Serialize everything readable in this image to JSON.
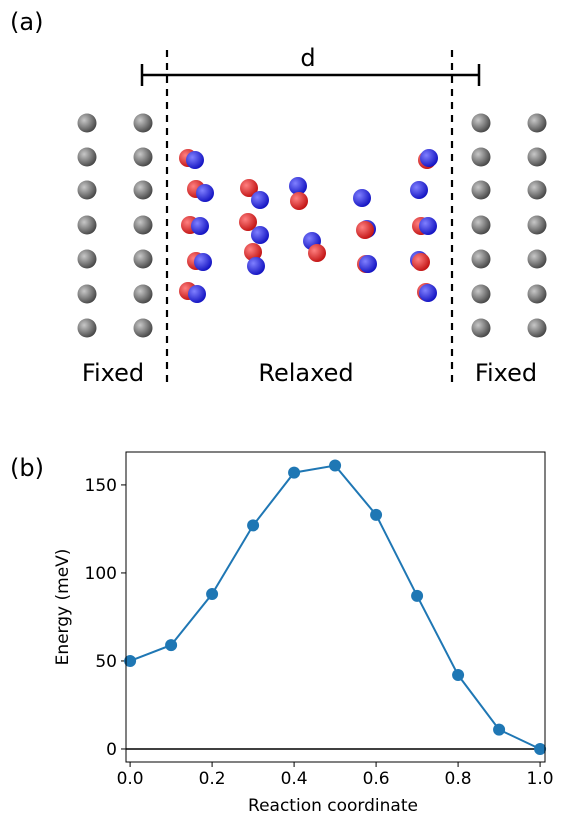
{
  "panel_a": {
    "label": "(a)",
    "distance_label": "d",
    "left_region": "Fixed",
    "middle_region": "Relaxed",
    "right_region": "Fixed"
  },
  "chart_data": {
    "type": "line",
    "panel_label": "(b)",
    "x_label": "Reaction coordinate",
    "y_label": "Energy (meV)",
    "x": [
      0,
      0.1,
      0.2,
      0.3,
      0.4,
      0.5,
      0.6,
      0.7,
      0.8,
      0.9,
      1.0
    ],
    "series": [
      {
        "color": "#1f77b4",
        "values": [
          50,
          59,
          88,
          127,
          157,
          161,
          133,
          87,
          42,
          11,
          0
        ]
      }
    ],
    "hline": 0,
    "hline_color": "#000000",
    "xlim": [
      -0.01,
      1.012
    ],
    "ylim": [
      -7.4,
      168.7
    ],
    "xticks": [
      {
        "value": 0,
        "label": "0.0"
      },
      {
        "value": 0.2,
        "label": "0.2"
      },
      {
        "value": 0.4,
        "label": "0.4"
      },
      {
        "value": 0.6,
        "label": "0.6"
      },
      {
        "value": 0.8,
        "label": "0.8"
      },
      {
        "value": 1.0,
        "label": "1.0"
      }
    ],
    "yticks": [
      0,
      50,
      100,
      150
    ]
  }
}
